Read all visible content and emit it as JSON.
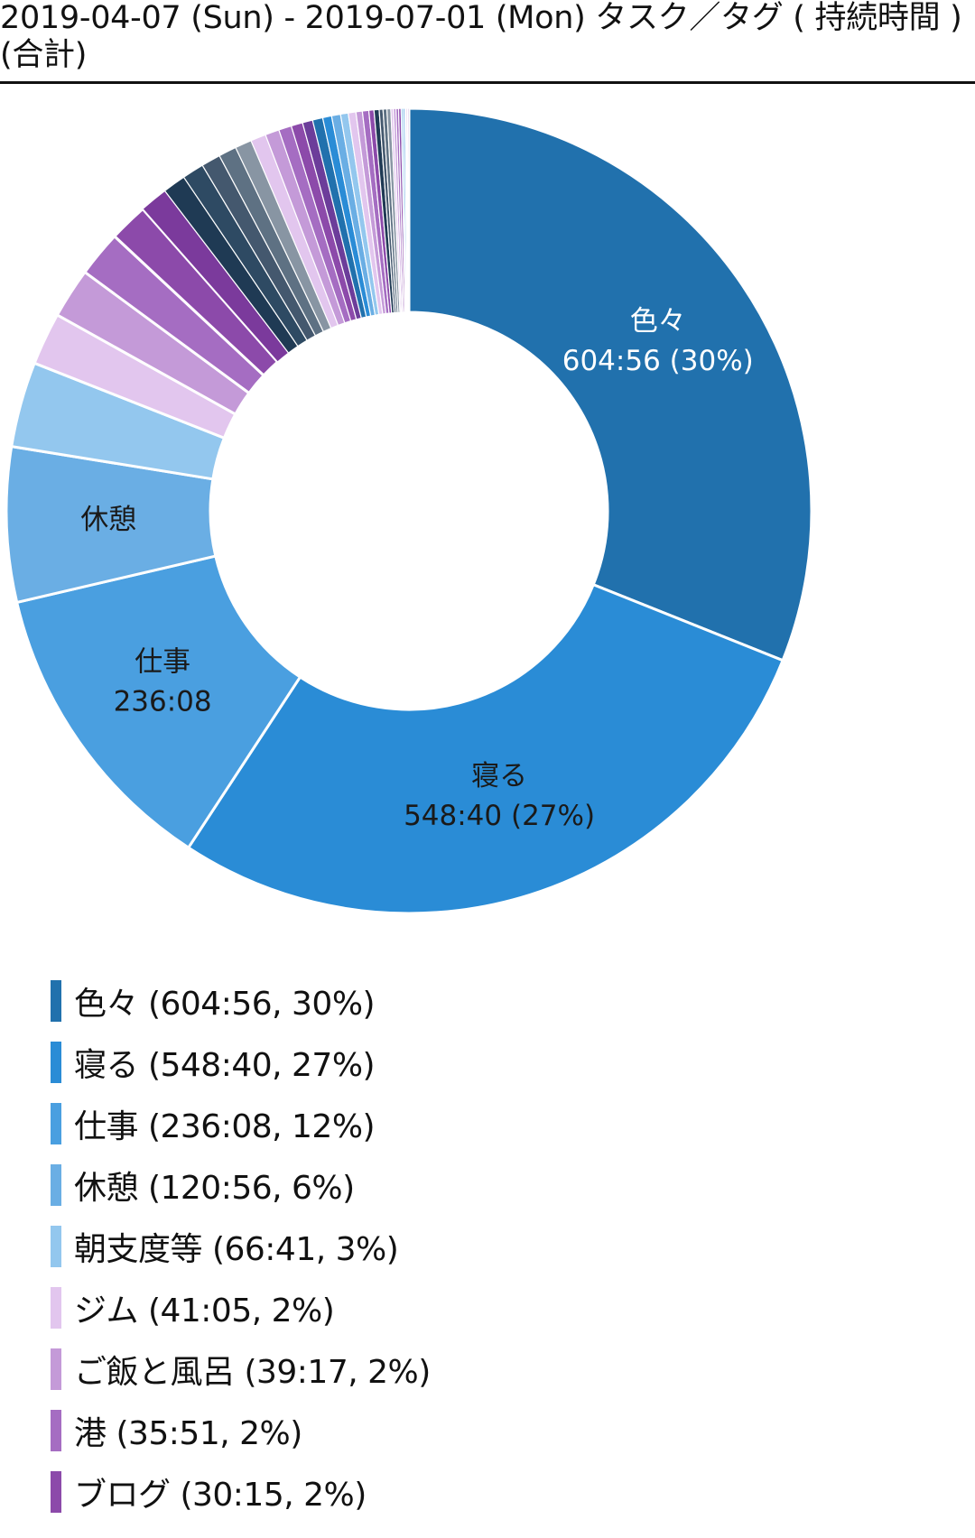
{
  "title": "2019-04-07 (Sun) - 2019-07-01 (Mon) タスク／タグ ( 持続時間 )(合計)",
  "chart_data": {
    "type": "pie",
    "title": "2019-04-07 (Sun) - 2019-07-01 (Mon) タスク／タグ ( 持続時間 )(合計)",
    "slices": [
      {
        "name": "色々",
        "duration": "604:56",
        "percent": 30,
        "value": 604.93,
        "color": "#2171ad",
        "label_lines": [
          "色々",
          "604:56 (30%)"
        ]
      },
      {
        "name": "寝る",
        "duration": "548:40",
        "percent": 27,
        "value": 548.67,
        "color": "#2a8cd6",
        "label_lines": [
          "寝る",
          "548:40 (27%)"
        ]
      },
      {
        "name": "仕事",
        "duration": "236:08",
        "percent": 12,
        "value": 236.13,
        "color": "#4a9fe0",
        "label_lines": [
          "仕事",
          "236:08"
        ]
      },
      {
        "name": "休憩",
        "duration": "120:56",
        "percent": 6,
        "value": 120.93,
        "color": "#6aaee4",
        "label_lines": [
          "休憩"
        ]
      },
      {
        "name": "朝支度等",
        "duration": "66:41",
        "percent": 3,
        "value": 66.68,
        "color": "#93c7ee",
        "label_lines": []
      },
      {
        "name": "ジム",
        "duration": "41:05",
        "percent": 2,
        "value": 41.08,
        "color": "#e2c6ee",
        "label_lines": []
      },
      {
        "name": "ご飯と風呂",
        "duration": "39:17",
        "percent": 2,
        "value": 39.28,
        "color": "#c49ad8",
        "label_lines": []
      },
      {
        "name": "港",
        "duration": "35:51",
        "percent": 2,
        "value": 35.85,
        "color": "#a56dc2",
        "label_lines": []
      },
      {
        "name": "ブログ",
        "duration": "30:15",
        "percent": 2,
        "value": 30.25,
        "color": "#8c4aaa",
        "label_lines": []
      }
    ],
    "other_slices": [
      {
        "value": 22,
        "color": "#7b3a9c"
      },
      {
        "value": 18,
        "color": "#1f3a54"
      },
      {
        "value": 17,
        "color": "#2e4a63"
      },
      {
        "value": 15,
        "color": "#44586e"
      },
      {
        "value": 14,
        "color": "#5e7183"
      },
      {
        "value": 13,
        "color": "#8895a3"
      },
      {
        "value": 12,
        "color": "#e2c6ee"
      },
      {
        "value": 11,
        "color": "#c49ad8"
      },
      {
        "value": 10,
        "color": "#a56dc2"
      },
      {
        "value": 9,
        "color": "#8c4aaa"
      },
      {
        "value": 8,
        "color": "#6c3d9a"
      },
      {
        "value": 8,
        "color": "#2171ad"
      },
      {
        "value": 7,
        "color": "#2a8cd6"
      },
      {
        "value": 7,
        "color": "#6aaee4"
      },
      {
        "value": 6,
        "color": "#93c7ee"
      },
      {
        "value": 6,
        "color": "#e2c6ee"
      },
      {
        "value": 5,
        "color": "#c49ad8"
      },
      {
        "value": 5,
        "color": "#a56dc2"
      },
      {
        "value": 4,
        "color": "#8c4aaa"
      },
      {
        "value": 4,
        "color": "#1f3a54"
      },
      {
        "value": 3,
        "color": "#44586e"
      },
      {
        "value": 3,
        "color": "#5e7183"
      },
      {
        "value": 3,
        "color": "#8895a3"
      },
      {
        "value": 2,
        "color": "#e2c6ee"
      },
      {
        "value": 2,
        "color": "#c49ad8"
      },
      {
        "value": 2,
        "color": "#a56dc2"
      },
      {
        "value": 2,
        "color": "#8c4aaa"
      },
      {
        "value": 1.5,
        "color": "#93c7ee"
      },
      {
        "value": 1.5,
        "color": "#6aaee4"
      },
      {
        "value": 1,
        "color": "#e2c6ee"
      },
      {
        "value": 1,
        "color": "#c49ad8"
      },
      {
        "value": 1,
        "color": "#a56dc2"
      }
    ],
    "legend": [
      {
        "text": "色々 (604:56, 30%)",
        "color": "#2171ad"
      },
      {
        "text": "寝る (548:40, 27%)",
        "color": "#2a8cd6"
      },
      {
        "text": "仕事 (236:08, 12%)",
        "color": "#4a9fe0"
      },
      {
        "text": "休憩 (120:56, 6%)",
        "color": "#6aaee4"
      },
      {
        "text": "朝支度等 (66:41, 3%)",
        "color": "#93c7ee"
      },
      {
        "text": "ジム (41:05, 2%)",
        "color": "#e2c6ee"
      },
      {
        "text": "ご飯と風呂 (39:17, 2%)",
        "color": "#c49ad8"
      },
      {
        "text": "港 (35:51, 2%)",
        "color": "#a56dc2"
      },
      {
        "text": "ブログ (30:15, 2%)",
        "color": "#8c4aaa"
      }
    ]
  }
}
